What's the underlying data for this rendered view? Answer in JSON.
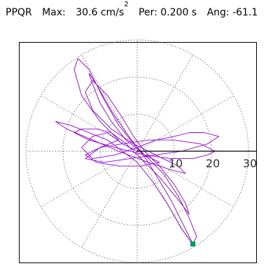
{
  "header": {
    "station": "PPQR",
    "max_label": "Max:",
    "max_value": "30.6",
    "max_unit_base": "cm/s",
    "max_unit_exp": "2",
    "per_label": "Per:",
    "per_value": "0.200 s",
    "ang_label": "Ang:",
    "ang_value": "-61.1"
  },
  "chart_data": {
    "type": "polar-particle-motion",
    "radial_ticks": [
      10,
      20,
      30
    ],
    "radial_tick_labels": [
      "10",
      "20",
      "30"
    ],
    "rmax": 33,
    "grid": true,
    "trace_color": "#9400d3",
    "end_marker_color": "#009966",
    "end_point": {
      "x": 15,
      "y": -25
    },
    "trace_points": [
      [
        0,
        0
      ],
      [
        -4,
        2
      ],
      [
        -8,
        5
      ],
      [
        -12,
        4
      ],
      [
        -15,
        1
      ],
      [
        -12,
        -2
      ],
      [
        -6,
        -1
      ],
      [
        0,
        1
      ],
      [
        5,
        3
      ],
      [
        10,
        4
      ],
      [
        14,
        5
      ],
      [
        18,
        5
      ],
      [
        22,
        4
      ],
      [
        19,
        2
      ],
      [
        12,
        0
      ],
      [
        5,
        -1
      ],
      [
        -2,
        -2
      ],
      [
        -9,
        -3
      ],
      [
        -14,
        -2
      ],
      [
        -10,
        1
      ],
      [
        -5,
        3
      ],
      [
        -10,
        8
      ],
      [
        -15,
        15
      ],
      [
        -17,
        22
      ],
      [
        -16,
        25
      ],
      [
        -13,
        22
      ],
      [
        -9,
        14
      ],
      [
        -5,
        7
      ],
      [
        -1,
        2
      ],
      [
        3,
        -2
      ],
      [
        7,
        -6
      ],
      [
        11,
        -12
      ],
      [
        14,
        -18
      ],
      [
        16,
        -23
      ],
      [
        15,
        -25
      ],
      [
        12,
        -21
      ],
      [
        8,
        -14
      ],
      [
        4,
        -8
      ],
      [
        0,
        -3
      ],
      [
        -4,
        0
      ],
      [
        -8,
        3
      ],
      [
        -13,
        5
      ],
      [
        -18,
        7
      ],
      [
        -22,
        8
      ],
      [
        -19,
        6
      ],
      [
        -12,
        3
      ],
      [
        -5,
        0
      ],
      [
        3,
        -3
      ],
      [
        9,
        -5
      ],
      [
        13,
        -6
      ],
      [
        11,
        -4
      ],
      [
        5,
        -1
      ],
      [
        -1,
        2
      ],
      [
        -7,
        6
      ],
      [
        -12,
        11
      ],
      [
        -14,
        16
      ],
      [
        -12,
        19
      ],
      [
        -8,
        15
      ],
      [
        -4,
        9
      ],
      [
        -1,
        4
      ],
      [
        2,
        0
      ],
      [
        6,
        -4
      ],
      [
        10,
        -9
      ],
      [
        13,
        -14
      ],
      [
        14,
        -17
      ],
      [
        11,
        -13
      ],
      [
        6,
        -7
      ],
      [
        1,
        -2
      ],
      [
        -3,
        2
      ],
      [
        -7,
        5
      ],
      [
        -11,
        6
      ],
      [
        -15,
        6
      ],
      [
        -17,
        5
      ],
      [
        -13,
        3
      ],
      [
        -6,
        1
      ],
      [
        2,
        -1
      ],
      [
        9,
        -2
      ],
      [
        15,
        -2
      ],
      [
        19,
        -1
      ],
      [
        21,
        0
      ],
      [
        17,
        2
      ],
      [
        10,
        3
      ],
      [
        3,
        3
      ],
      [
        -4,
        2
      ],
      [
        -10,
        1
      ],
      [
        -14,
        -1
      ],
      [
        -11,
        -3
      ],
      [
        -5,
        -4
      ],
      [
        1,
        -4
      ],
      [
        6,
        -3
      ],
      [
        2,
        -1
      ],
      [
        -3,
        3
      ],
      [
        -7,
        8
      ],
      [
        -10,
        13
      ],
      [
        -12,
        18
      ],
      [
        -13,
        21
      ],
      [
        -11,
        18
      ],
      [
        -7,
        11
      ],
      [
        -3,
        5
      ],
      [
        0,
        1
      ],
      [
        3,
        -3
      ],
      [
        6,
        -8
      ],
      [
        9,
        -13
      ],
      [
        12,
        -19
      ],
      [
        14,
        -23
      ],
      [
        15,
        -25
      ]
    ]
  }
}
